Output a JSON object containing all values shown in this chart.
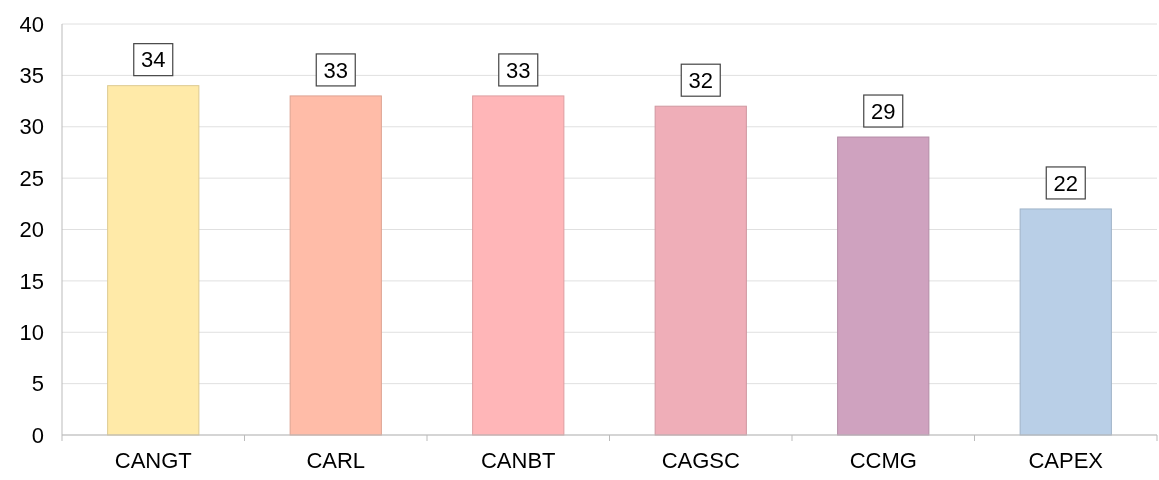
{
  "chart_data": {
    "type": "bar",
    "categories": [
      "CANGT",
      "CARL",
      "CANBT",
      "CAGSC",
      "CCMG",
      "CAPEX"
    ],
    "values": [
      34,
      33,
      33,
      32,
      29,
      22
    ],
    "colors": [
      "#ffeaa8",
      "#ffbca8",
      "#ffb6b8",
      "#efaeb8",
      "#cfa2bf",
      "#b9cfe7"
    ],
    "ylim": [
      0,
      40
    ],
    "yticks": [
      0,
      5,
      10,
      15,
      20,
      25,
      30,
      35,
      40
    ],
    "grid": "y",
    "data_labels": true
  }
}
